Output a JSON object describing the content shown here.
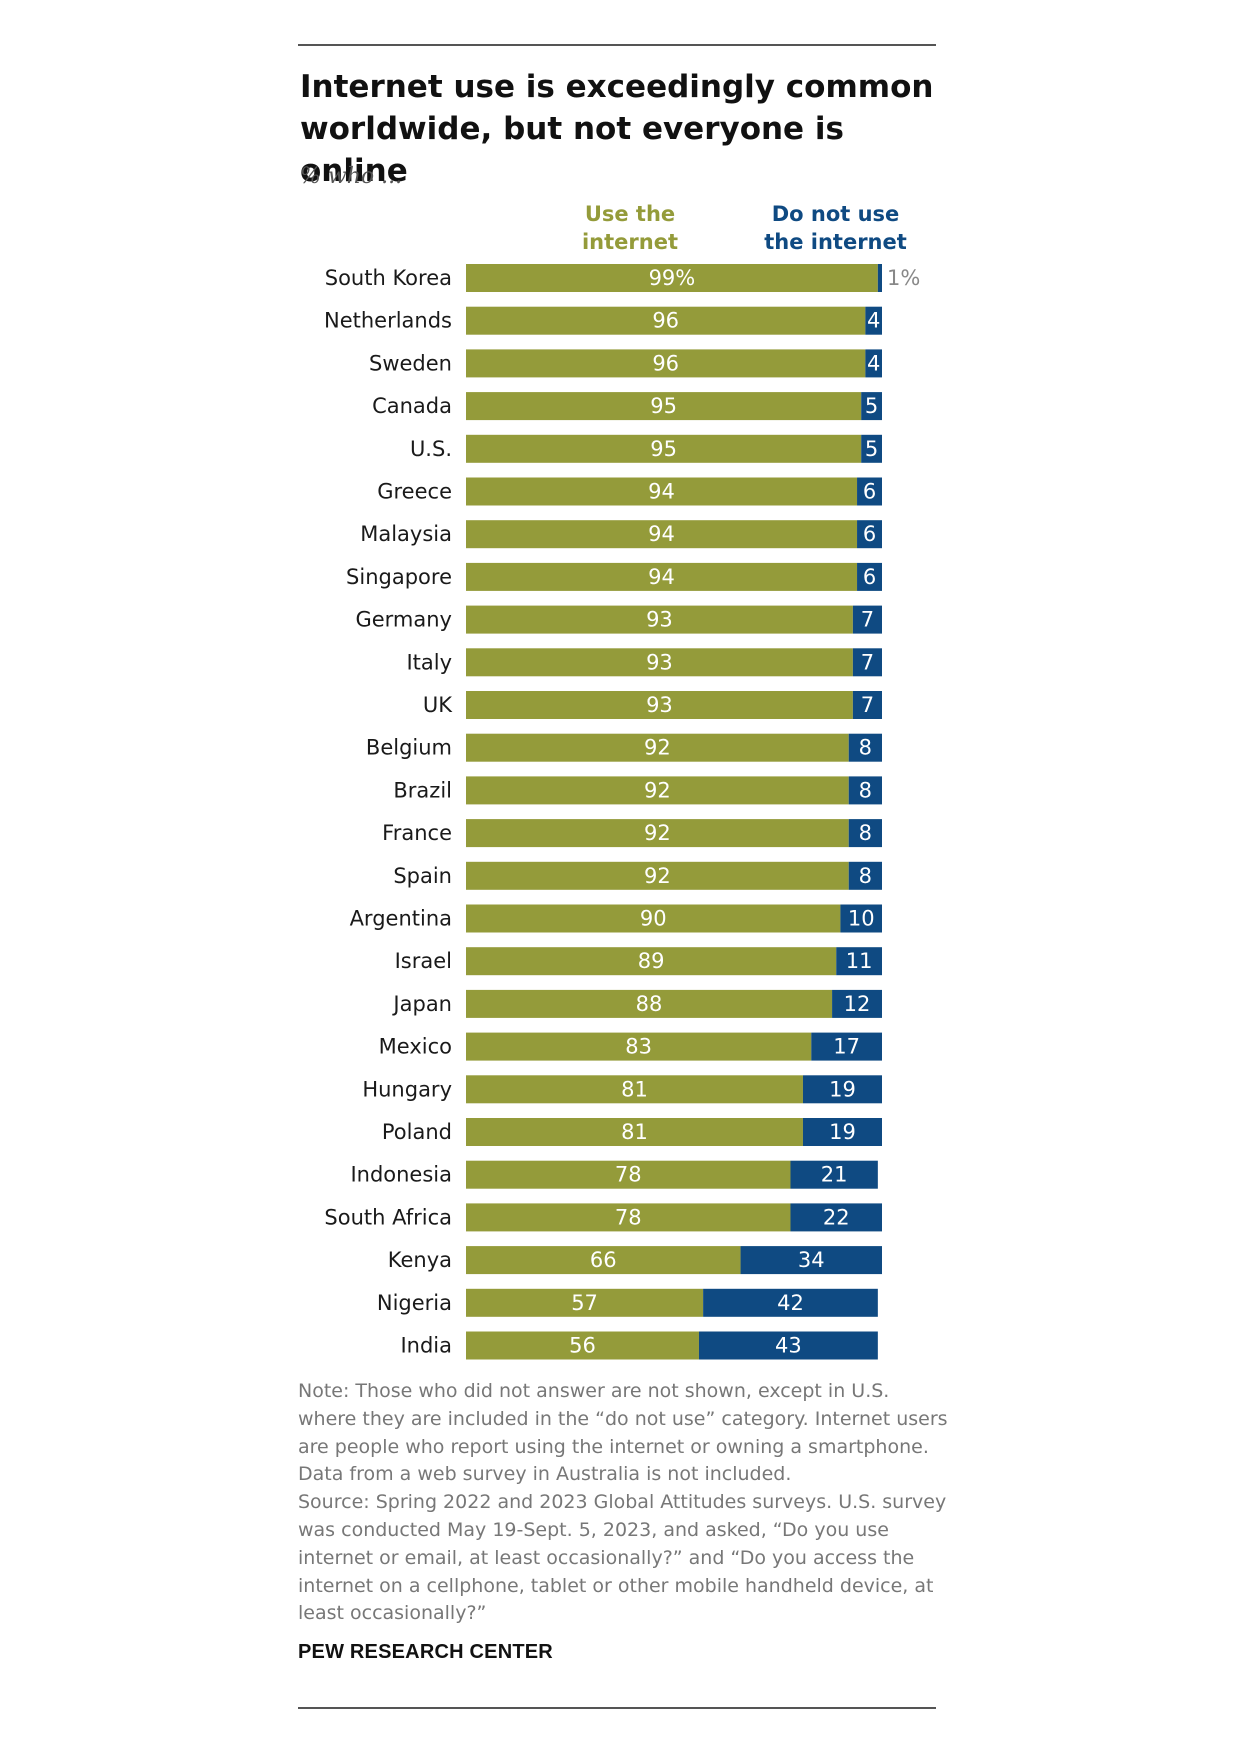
{
  "chart_data": {
    "type": "bar",
    "orientation": "horizontal",
    "stacked": true,
    "title": "Internet use is exceedingly common worldwide, but not everyone is online",
    "subtitle": "% who ...",
    "categories": [
      "South Korea",
      "Netherlands",
      "Sweden",
      "Canada",
      "U.S.",
      "Greece",
      "Malaysia",
      "Singapore",
      "Germany",
      "Italy",
      "UK",
      "Belgium",
      "Brazil",
      "France",
      "Spain",
      "Argentina",
      "Israel",
      "Japan",
      "Mexico",
      "Hungary",
      "Poland",
      "Indonesia",
      "South Africa",
      "Kenya",
      "Nigeria",
      "India"
    ],
    "series": [
      {
        "name": "Use the internet",
        "color": "#949b3a",
        "values": [
          99,
          96,
          96,
          95,
          95,
          94,
          94,
          94,
          93,
          93,
          93,
          92,
          92,
          92,
          92,
          90,
          89,
          88,
          83,
          81,
          81,
          78,
          78,
          66,
          57,
          56
        ]
      },
      {
        "name": "Do not use the internet",
        "color": "#0f4a82",
        "values": [
          1,
          4,
          4,
          5,
          5,
          6,
          6,
          6,
          7,
          7,
          7,
          8,
          8,
          8,
          8,
          10,
          11,
          12,
          17,
          19,
          19,
          21,
          22,
          34,
          42,
          43
        ]
      }
    ],
    "first_row_labels": {
      "use": "99%",
      "notuse": "1%"
    },
    "xlim": [
      0,
      100
    ]
  },
  "legend": {
    "use": [
      "Use the",
      "internet"
    ],
    "notuse": [
      "Do not use",
      "the internet"
    ]
  },
  "note": "Note: Those who did not answer are not shown, except in U.S. where they are included in the “do not use” category. Internet users are people who report using the internet or owning a smartphone. Data from a web survey in Australia is not included.",
  "source": "Source: Spring 2022 and 2023 Global Attitudes surveys. U.S. survey was conducted May 19-Sept. 5, 2023, and asked, “Do you use internet or email, at least occasionally?” and “Do you access the internet on a cellphone, tablet or other mobile handheld device, at least occasionally?”",
  "brand": "PEW RESEARCH CENTER",
  "colors": {
    "use": "#949b3a",
    "notuse": "#0f4a82",
    "legend_use": "#949b3a",
    "legend_notuse": "#0f4a82"
  }
}
